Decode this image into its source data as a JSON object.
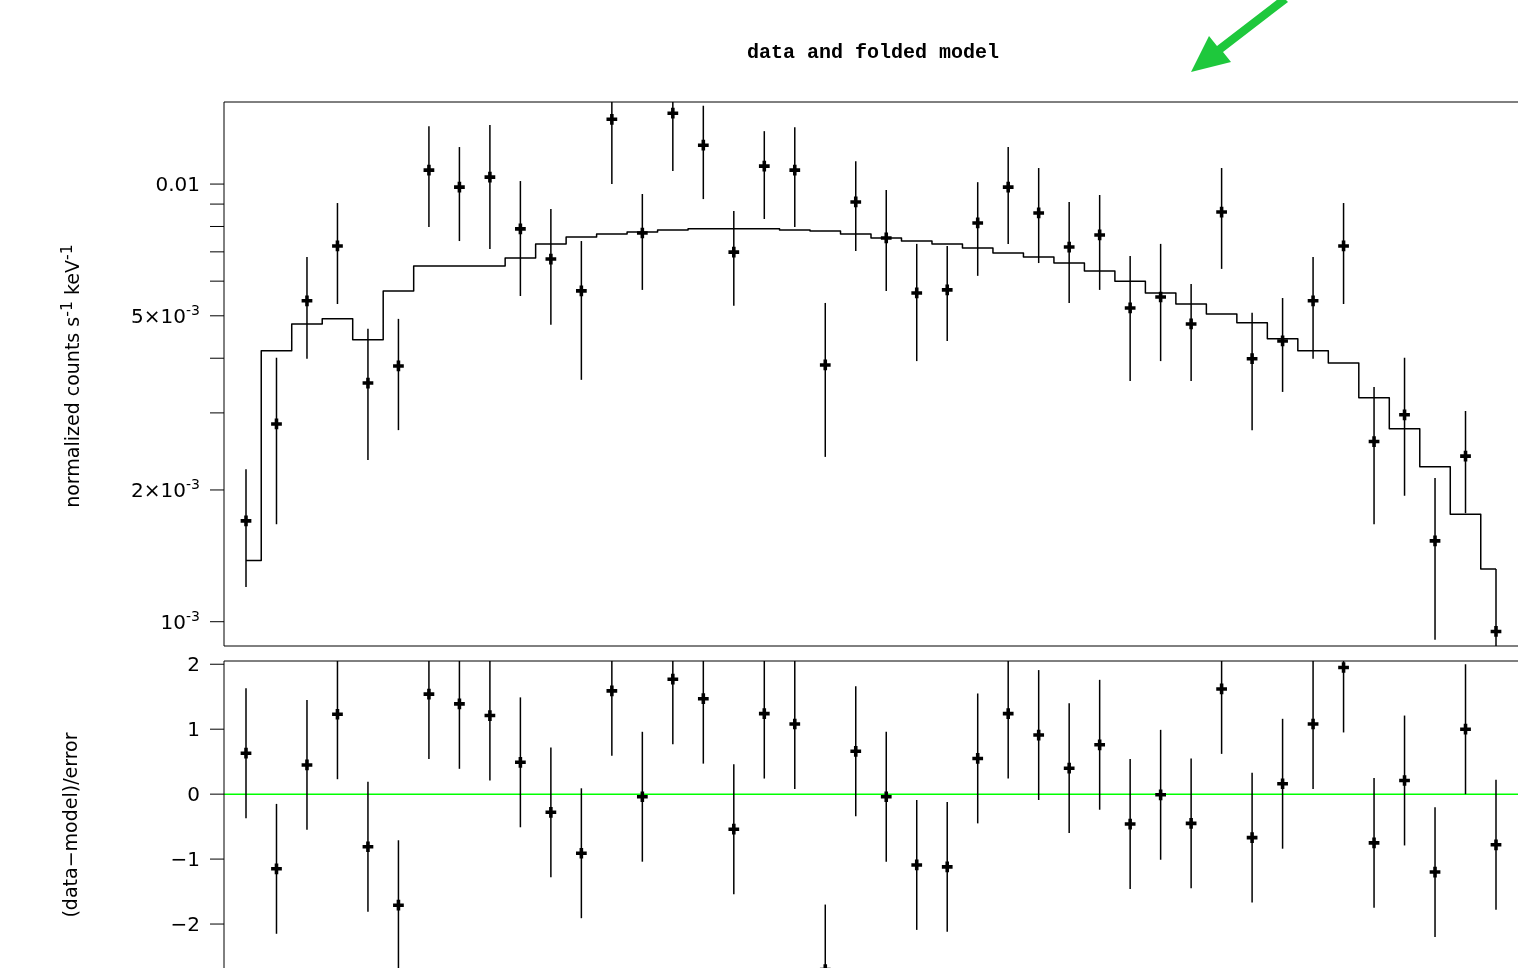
{
  "chart_data": [
    {
      "type": "scatter",
      "title": "data and folded model",
      "ylabel": "normalized counts s$^{-1}$ keV$^{-1}$",
      "categories": [
        null,
        null,
        null,
        null,
        null,
        null,
        null,
        null,
        null,
        null,
        null,
        null,
        null,
        null,
        null,
        null,
        null,
        null,
        null,
        null,
        null,
        null,
        null,
        null,
        null,
        null,
        null,
        null,
        null,
        null,
        null,
        null,
        null,
        null,
        null,
        null,
        null,
        null,
        null,
        null,
        null,
        null
      ],
      "log": "y",
      "ylim": [
        0.00088,
        0.0154
      ],
      "yticks": [
        {
          "value": 0.001,
          "label": "10$^{-3}$"
        },
        {
          "value": 0.002,
          "label": "2×10$^{-3}$"
        },
        {
          "value": 0.003,
          "label": null
        },
        {
          "value": 0.004,
          "label": null
        },
        {
          "value": 0.005,
          "label": "5×10$^{-3}$"
        },
        {
          "value": 0.006,
          "label": null
        },
        {
          "value": 0.007,
          "label": null
        },
        {
          "value": 0.008,
          "label": null
        },
        {
          "value": 0.009,
          "label": null
        },
        {
          "value": 0.01,
          "label": "0.01"
        }
      ],
      "tick_labels": "y",
      "grid": false,
      "legend": false,
      "series": [
        {
          "marker": "cross",
          "color": "#000000",
          "values": [
            0.0017,
            0.00283,
            0.00541,
            0.00722,
            0.00351,
            0.00384,
            0.01076,
            0.00984,
            0.01037,
            0.0079,
            0.00674,
            0.0057,
            0.01406,
            0.00773,
            0.01452,
            0.01227,
            0.00699,
            0.01099,
            0.01076,
            0.00386,
            0.0091,
            0.00753,
            0.00564,
            0.00573,
            0.00815,
            0.00984,
            0.00859,
            0.00718,
            0.00765,
            0.00521,
            0.00552,
            0.00479,
            0.00863,
            0.00399,
            0.00438,
            0.00541,
            0.00722,
            0.00258,
            0.00297,
            0.00153,
            0.00239,
            0.00095
          ],
          "errors": [
            [
              0.0012,
              0.00223
            ],
            [
              0.00167,
              0.00401
            ],
            [
              0.00399,
              0.00681
            ],
            [
              0.00532,
              0.00905
            ],
            [
              0.00234,
              0.00467
            ],
            [
              0.00274,
              0.00492
            ],
            [
              0.00798,
              0.01356
            ],
            [
              0.00741,
              0.01215
            ],
            [
              0.00711,
              0.01364
            ],
            [
              0.00555,
              0.01016
            ],
            [
              0.00477,
              0.00877
            ],
            [
              0.00357,
              0.00741
            ],
            [
              0.01,
              0.0154
            ],
            [
              0.00573,
              0.00949
            ],
            [
              0.01071,
              0.0154
            ],
            [
              0.00924,
              0.0151
            ],
            [
              0.00527,
              0.00868
            ],
            [
              0.00832,
              0.01321
            ],
            [
              0.00798,
              0.01349
            ],
            [
              0.00238,
              0.00535
            ],
            [
              0.00703,
              0.01128
            ],
            [
              0.0057,
              0.00969
            ],
            [
              0.00394,
              0.0073
            ],
            [
              0.00438,
              0.00722
            ],
            [
              0.00617,
              0.0101
            ],
            [
              0.0073,
              0.01215
            ],
            [
              0.0066,
              0.01088
            ],
            [
              0.00535,
              0.0091
            ],
            [
              0.00573,
              0.00944
            ],
            [
              0.00355,
              0.00685
            ],
            [
              0.00394,
              0.0073
            ],
            [
              0.00355,
              0.00591
            ],
            [
              0.0064,
              0.01088
            ],
            [
              0.00274,
              0.00508
            ],
            [
              0.00335,
              0.00549
            ],
            [
              0.00399,
              0.00681
            ],
            [
              0.00532,
              0.00905
            ],
            [
              0.00167,
              0.00344
            ],
            [
              0.00194,
              0.00401
            ],
            [
              0.00091,
              0.00213
            ],
            [
              0.00177,
              0.00303
            ],
            [
              0.00088,
              0.00132
            ]
          ]
        },
        {
          "type": "step",
          "color": "#000000",
          "values": [
            0.00138,
            0.00416,
            0.00479,
            0.00492,
            0.00441,
            0.0057,
            0.0065,
            0.0065,
            0.0065,
            0.00678,
            0.0073,
            0.00757,
            0.00769,
            0.00777,
            0.00785,
            0.0079,
            0.0079,
            0.0079,
            0.00785,
            0.00781,
            0.00769,
            0.00753,
            0.00741,
            0.0073,
            0.00714,
            0.00696,
            0.00681,
            0.0066,
            0.00633,
            0.006,
            0.00564,
            0.00532,
            0.00505,
            0.00482,
            0.00443,
            0.00416,
            0.0039,
            0.00325,
            0.00276,
            0.00226,
            0.00176,
            0.00132
          ]
        }
      ]
    },
    {
      "type": "scatter",
      "ylabel": "(data−model)/error",
      "categories": [
        null,
        null,
        null,
        null,
        null,
        null,
        null,
        null,
        null,
        null,
        null,
        null,
        null,
        null,
        null,
        null,
        null,
        null,
        null,
        null,
        null,
        null,
        null,
        null,
        null,
        null,
        null,
        null,
        null,
        null,
        null,
        null,
        null,
        null,
        null,
        null,
        null,
        null,
        null,
        null,
        null,
        null
      ],
      "ylim": [
        -2.8,
        2.05
      ],
      "yticks": [
        {
          "value": -2,
          "label": "−2"
        },
        {
          "value": -1,
          "label": "−1"
        },
        0,
        1,
        2
      ],
      "tick_labels": "y",
      "grid": false,
      "legend": false,
      "ref_lines": [
        {
          "axis": "y",
          "value": 0,
          "color": "#00ff00"
        }
      ],
      "series": [
        {
          "marker": "cross",
          "color": "#000000",
          "values": [
            0.63,
            -1.15,
            0.45,
            1.23,
            -0.81,
            -1.71,
            1.54,
            1.39,
            1.21,
            0.49,
            -0.28,
            -0.91,
            1.59,
            -0.04,
            1.77,
            1.47,
            -0.54,
            1.24,
            1.08,
            -2.7,
            0.66,
            -0.04,
            -1.09,
            -1.12,
            0.55,
            1.24,
            0.91,
            0.4,
            0.76,
            -0.46,
            -0.01,
            -0.45,
            1.62,
            -0.67,
            0.16,
            1.08,
            1.95,
            -0.75,
            0.21,
            -1.2,
            1.0,
            -0.78
          ],
          "errors": [
            1,
            1,
            1,
            [
              0.23,
              2.05
            ],
            1,
            1,
            [
              0.54,
              2.05
            ],
            [
              0.39,
              2.05
            ],
            [
              0.21,
              2.05
            ],
            1,
            1,
            1,
            [
              0.59,
              2.05
            ],
            1,
            [
              0.77,
              2.05
            ],
            [
              0.47,
              2.05
            ],
            1,
            [
              0.24,
              2.05
            ],
            [
              0.08,
              2.05
            ],
            [
              -2.75,
              -1.7
            ],
            1,
            1,
            1,
            1,
            1,
            [
              0.24,
              2.05
            ],
            1,
            1,
            1,
            1,
            1,
            1,
            [
              0.62,
              2.05
            ],
            1,
            1,
            [
              0.08,
              2.05
            ],
            [
              0.95,
              2.05
            ],
            1,
            1,
            1,
            1,
            1
          ]
        }
      ]
    }
  ]
}
